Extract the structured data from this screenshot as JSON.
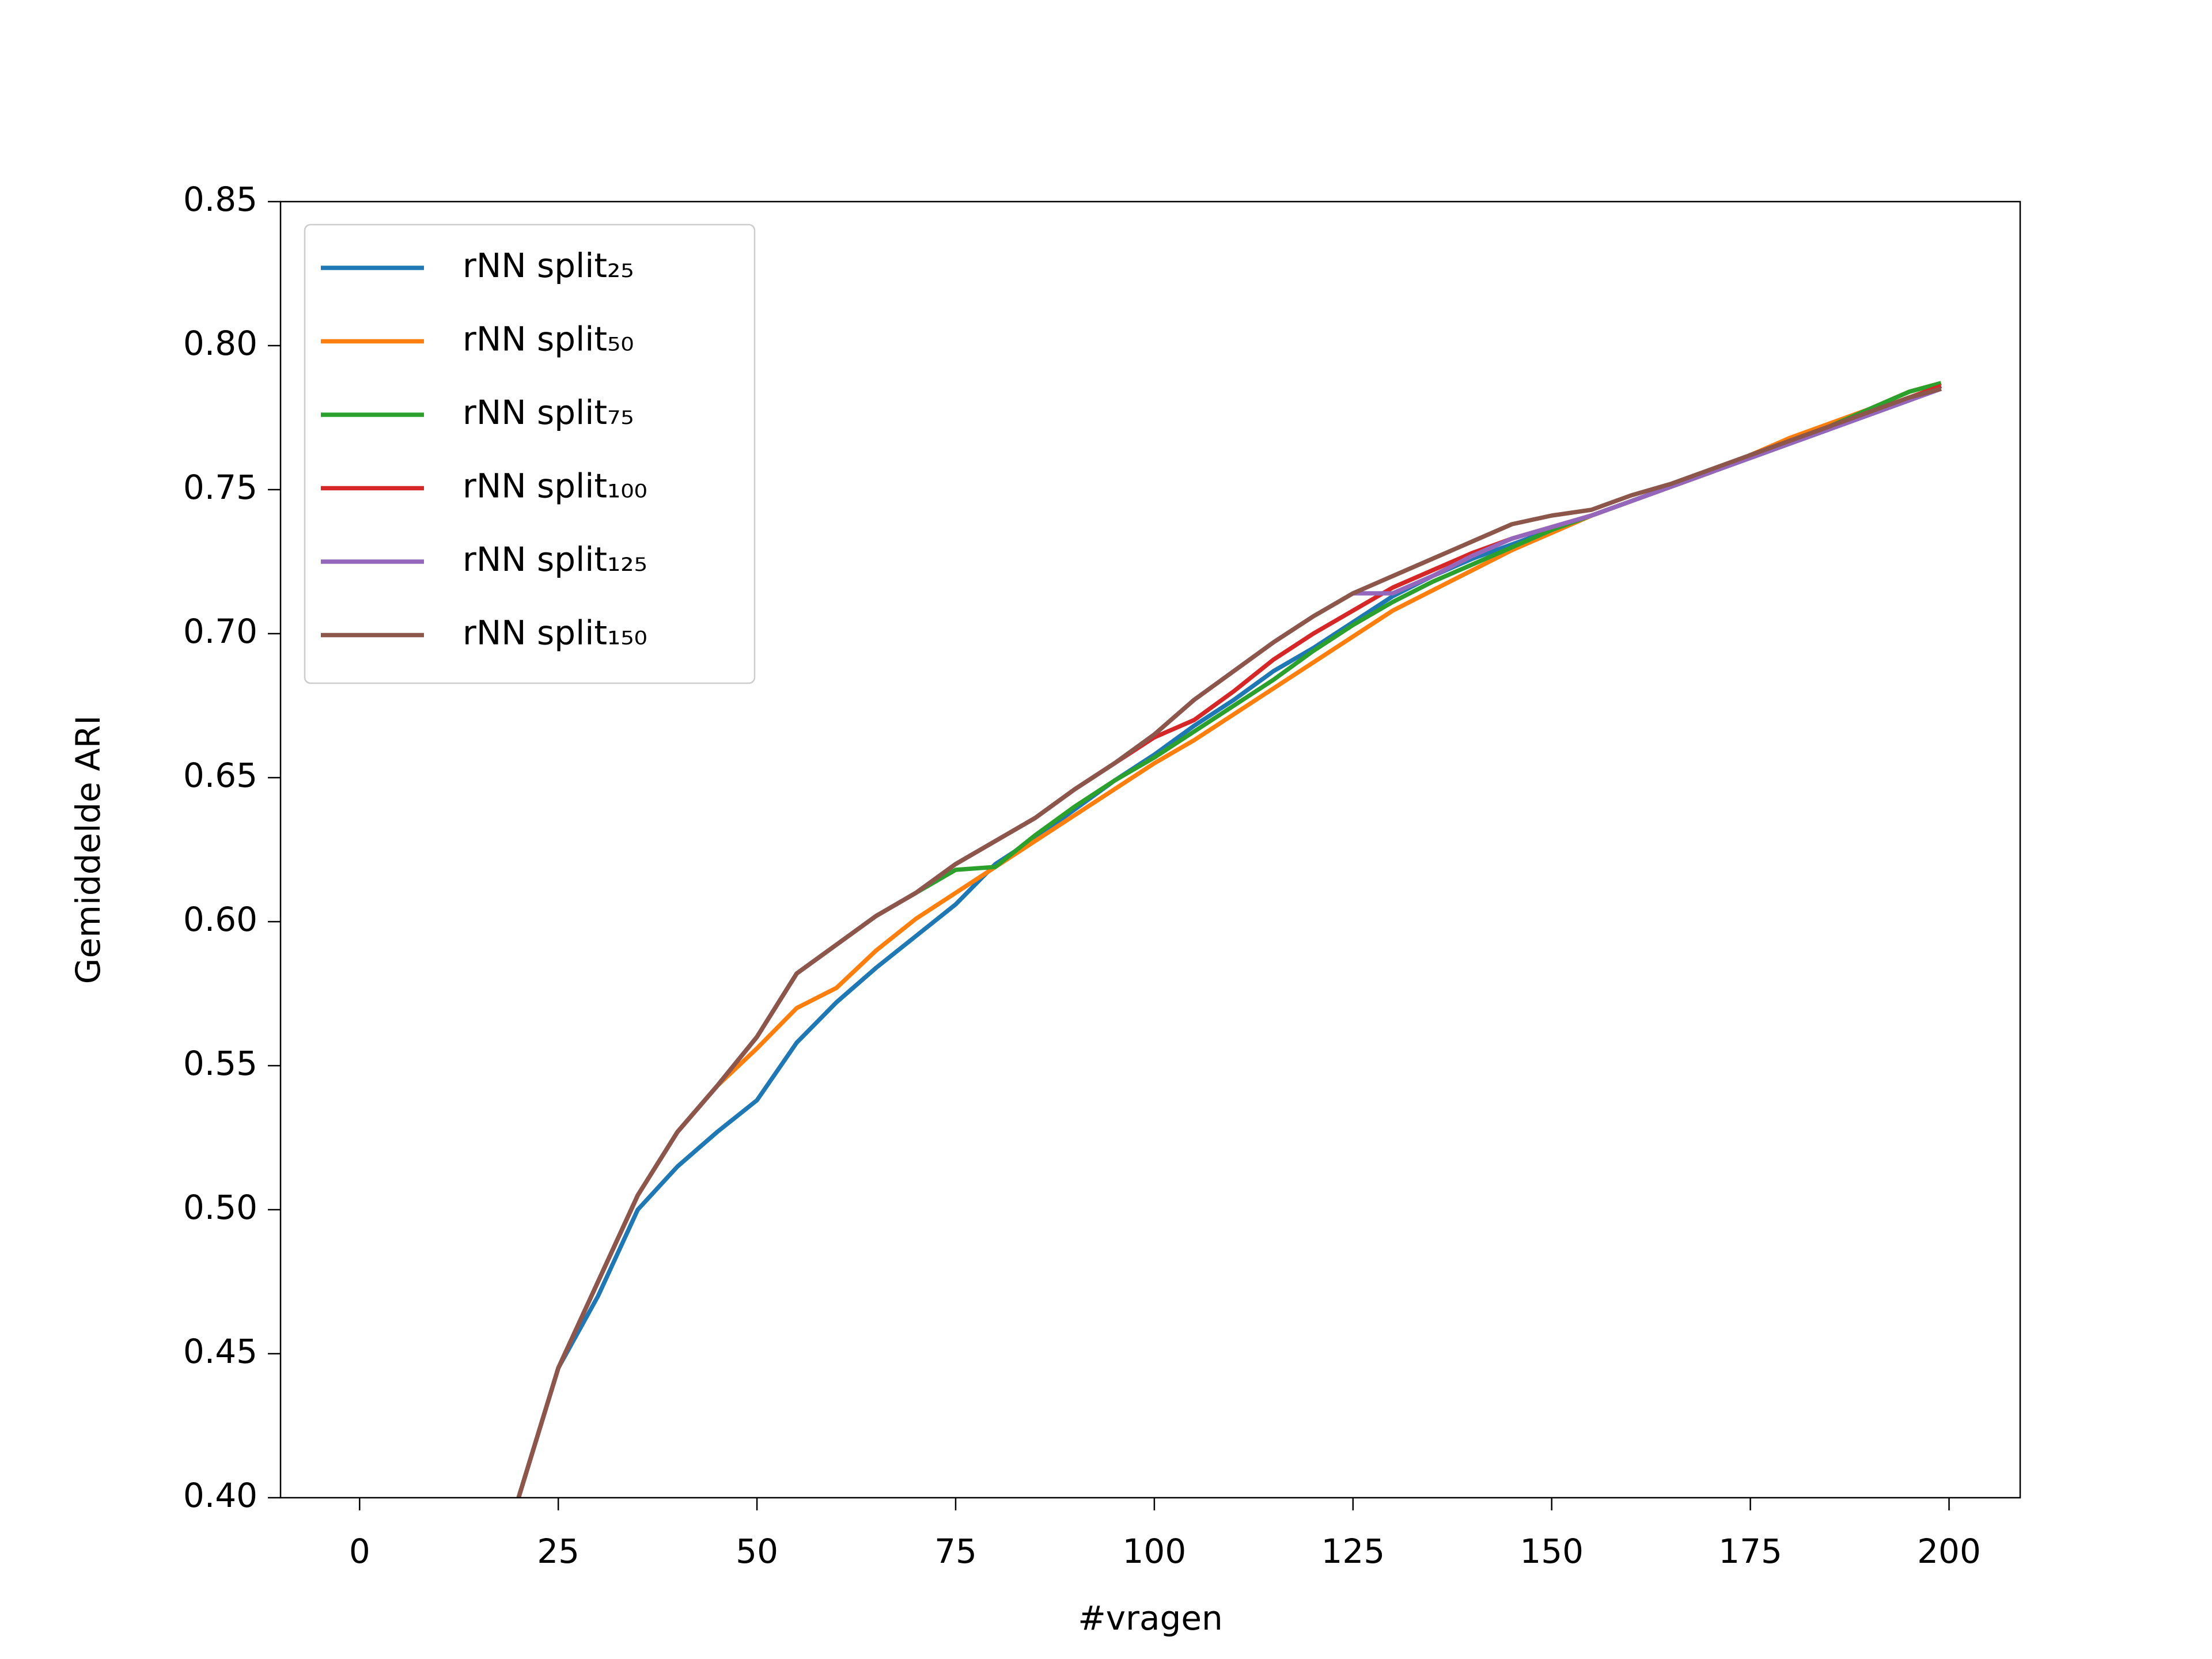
{
  "chart_data": {
    "type": "line",
    "xlabel": "#vragen",
    "ylabel": "Gemiddelde ARI",
    "x": [
      20,
      25,
      30,
      35,
      40,
      45,
      50,
      55,
      60,
      65,
      70,
      75,
      80,
      85,
      90,
      95,
      100,
      105,
      110,
      115,
      120,
      125,
      130,
      135,
      140,
      145,
      150,
      155,
      160,
      165,
      170,
      175,
      180,
      185,
      190,
      195,
      199
    ],
    "xlim": [
      -9.95,
      208.95
    ],
    "xticks": [
      0,
      25,
      50,
      75,
      100,
      125,
      150,
      175,
      200
    ],
    "ylim": [
      0.4,
      0.85
    ],
    "yticks": [
      {
        "value": 0.4,
        "label": "0.40"
      },
      {
        "value": 0.45,
        "label": "0.45"
      },
      {
        "value": 0.5,
        "label": "0.50"
      },
      {
        "value": 0.55,
        "label": "0.55"
      },
      {
        "value": 0.6,
        "label": "0.60"
      },
      {
        "value": 0.65,
        "label": "0.65"
      },
      {
        "value": 0.7,
        "label": "0.70"
      },
      {
        "value": 0.75,
        "label": "0.75"
      },
      {
        "value": 0.8,
        "label": "0.80"
      },
      {
        "value": 0.85,
        "label": "0.85"
      }
    ],
    "legend": "upper left",
    "grid": false,
    "series": [
      {
        "name": "rNN split₂₅",
        "color": "#1f77b4",
        "values": [
          0.4,
          0.445,
          0.47,
          0.5,
          0.515,
          0.527,
          0.538,
          0.558,
          0.572,
          0.584,
          0.595,
          0.606,
          0.62,
          0.629,
          0.639,
          0.649,
          0.658,
          0.668,
          0.677,
          0.687,
          0.695,
          0.704,
          0.713,
          0.72,
          0.726,
          0.731,
          0.736,
          0.741,
          0.746,
          0.751,
          0.756,
          0.761,
          0.766,
          0.771,
          0.776,
          0.781,
          0.786
        ]
      },
      {
        "name": "rNN split₅₀",
        "color": "#ff7f0e",
        "values": [
          0.4,
          0.445,
          0.475,
          0.505,
          0.527,
          0.543,
          0.556,
          0.57,
          0.577,
          0.59,
          0.601,
          0.61,
          0.619,
          0.628,
          0.637,
          0.646,
          0.655,
          0.663,
          0.672,
          0.681,
          0.69,
          0.699,
          0.708,
          0.715,
          0.722,
          0.729,
          0.735,
          0.741,
          0.746,
          0.751,
          0.756,
          0.762,
          0.768,
          0.773,
          0.778,
          0.784,
          0.787
        ]
      },
      {
        "name": "rNN split₇₅",
        "color": "#2ca02c",
        "values": [
          0.4,
          0.445,
          0.475,
          0.505,
          0.527,
          0.543,
          0.56,
          0.582,
          0.592,
          0.602,
          0.61,
          0.618,
          0.619,
          0.63,
          0.64,
          0.649,
          0.657,
          0.666,
          0.675,
          0.684,
          0.694,
          0.703,
          0.711,
          0.718,
          0.724,
          0.73,
          0.736,
          0.741,
          0.746,
          0.751,
          0.756,
          0.762,
          0.767,
          0.772,
          0.778,
          0.784,
          0.787
        ]
      },
      {
        "name": "rNN split₁₀₀",
        "color": "#d62728",
        "values": [
          0.4,
          0.445,
          0.475,
          0.505,
          0.527,
          0.543,
          0.56,
          0.582,
          0.592,
          0.602,
          0.61,
          0.62,
          0.628,
          0.636,
          0.646,
          0.655,
          0.664,
          0.67,
          0.68,
          0.691,
          0.7,
          0.708,
          0.716,
          0.722,
          0.728,
          0.733,
          0.737,
          0.741,
          0.746,
          0.751,
          0.756,
          0.762,
          0.767,
          0.772,
          0.777,
          0.782,
          0.786
        ]
      },
      {
        "name": "rNN split₁₂₅",
        "color": "#9467bd",
        "values": [
          0.4,
          0.445,
          0.475,
          0.505,
          0.527,
          0.543,
          0.56,
          0.582,
          0.592,
          0.602,
          0.61,
          0.62,
          0.628,
          0.636,
          0.646,
          0.655,
          0.665,
          0.677,
          0.687,
          0.697,
          0.706,
          0.714,
          0.714,
          0.72,
          0.727,
          0.733,
          0.737,
          0.741,
          0.746,
          0.751,
          0.756,
          0.761,
          0.766,
          0.771,
          0.776,
          0.781,
          0.785
        ]
      },
      {
        "name": "rNN split₁₅₀",
        "color": "#8c564b",
        "values": [
          0.4,
          0.445,
          0.475,
          0.505,
          0.527,
          0.543,
          0.56,
          0.582,
          0.592,
          0.602,
          0.61,
          0.62,
          0.628,
          0.636,
          0.646,
          0.655,
          0.665,
          0.677,
          0.687,
          0.697,
          0.706,
          0.714,
          0.72,
          0.726,
          0.732,
          0.738,
          0.741,
          0.743,
          0.748,
          0.752,
          0.757,
          0.762,
          0.767,
          0.772,
          0.777,
          0.782,
          0.785
        ]
      }
    ]
  }
}
